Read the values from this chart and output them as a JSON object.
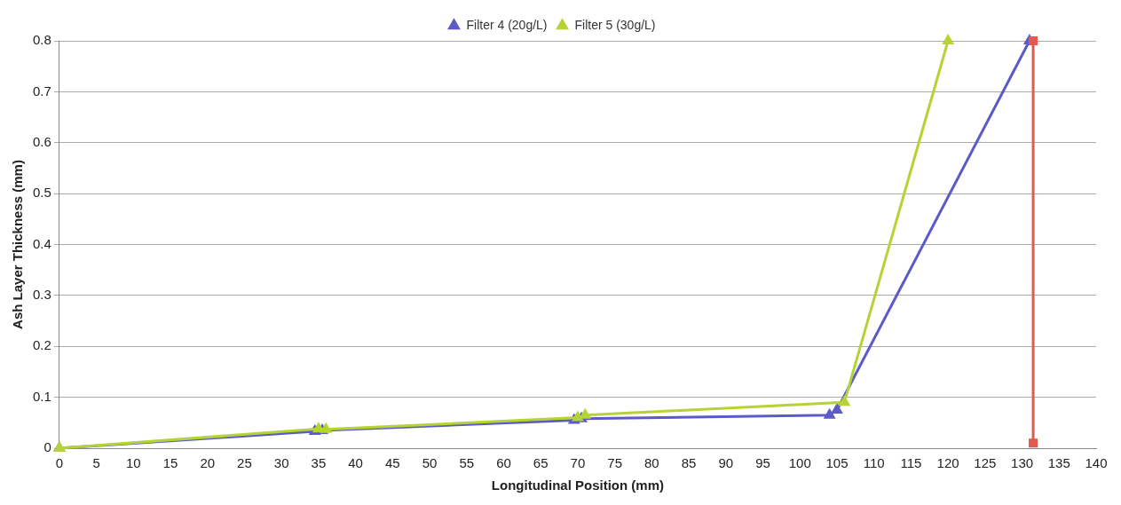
{
  "chart_data": {
    "type": "line",
    "xlabel": "Longitudinal Position (mm)",
    "ylabel": "Ash Layer Thickness (mm)",
    "xlim": [
      0,
      140
    ],
    "xticks": [
      0,
      5,
      10,
      15,
      20,
      25,
      30,
      35,
      40,
      45,
      50,
      55,
      60,
      65,
      70,
      75,
      80,
      85,
      90,
      95,
      100,
      105,
      110,
      115,
      120,
      125,
      130,
      135,
      140
    ],
    "ylim": [
      0,
      0.8
    ],
    "yticks": [
      0,
      0.1,
      0.2,
      0.3,
      0.4,
      0.5,
      0.6,
      0.7,
      0.8
    ],
    "grid": "y",
    "legend": "top",
    "line_style": "solid",
    "series": [
      {
        "name": "Filter 4 (20g/L)",
        "color": "#5b5bc8",
        "marker": "triangle",
        "x": [
          0,
          34.5,
          35.5,
          69.5,
          70.5,
          104,
          105,
          131
        ],
        "values": [
          0,
          0.033,
          0.035,
          0.055,
          0.058,
          0.065,
          0.075,
          0.8
        ]
      },
      {
        "name": "Filter 5 (30g/L)",
        "color": "#b5d334",
        "marker": "triangle",
        "x": [
          0,
          35,
          36,
          70,
          71,
          106,
          120
        ],
        "values": [
          0,
          0.038,
          0.037,
          0.06,
          0.065,
          0.09,
          0.8
        ]
      },
      {
        "color": "#e05a4e",
        "marker": "square",
        "x": [
          131.5,
          131.5
        ],
        "values": [
          0.8,
          0.01
        ]
      }
    ]
  }
}
